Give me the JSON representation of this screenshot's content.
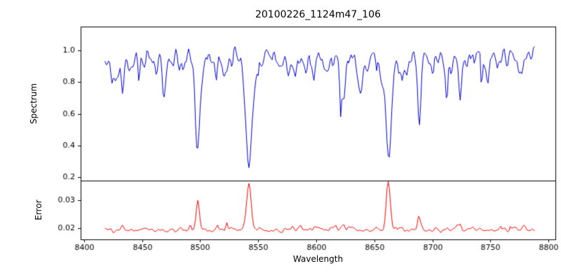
{
  "title": "20100226_1124m47_106",
  "axes": {
    "xlabel": "Wavelength",
    "ylabel_top": "Spectrum",
    "ylabel_bottom": "Error"
  },
  "colors": {
    "background": "#ffffff",
    "axis": "#000000",
    "spectrum_line": "#0000dd",
    "error_line": "#ff0000"
  },
  "chart_data": [
    {
      "type": "line",
      "title": "20100226_1124m47_106",
      "xlabel": "Wavelength",
      "ylabel": "Spectrum",
      "legend": "none",
      "grid": false,
      "line_color": "#0000dd",
      "xlim": [
        8397,
        8806
      ],
      "ylim": [
        0.18,
        1.15
      ],
      "x_ticks": {
        "values": [
          8400,
          8450,
          8500,
          8550,
          8600,
          8650,
          8700,
          8750,
          8800
        ],
        "labels": [
          "8400",
          "8450",
          "8500",
          "8550",
          "8600",
          "8650",
          "8700",
          "8750",
          "8800"
        ]
      },
      "y_ticks": {
        "values": [
          1.0,
          0.8,
          0.6,
          0.4,
          0.2
        ],
        "labels": [
          "1.0",
          "0.8",
          "0.6",
          "0.4",
          "0.2"
        ]
      },
      "x_start": 8418,
      "x_end": 8788,
      "x_step": 1,
      "baseline": 0.955,
      "noise_amplitude": 0.05,
      "clip_max": 1.06,
      "seed": 20100226,
      "micro_lines": {
        "count": 55,
        "seed": 7,
        "amp_min": 0.02,
        "amp_max": 0.13,
        "sigma_min": 0.5,
        "sigma_max": 1.8
      },
      "absorption_lines": [
        {
          "center": 8424.0,
          "depth": 0.1,
          "sigma": 0.9
        },
        {
          "center": 8433.0,
          "depth": 0.25,
          "sigma": 1.1
        },
        {
          "center": 8447.0,
          "depth": 0.1,
          "sigma": 0.8
        },
        {
          "center": 8468.0,
          "depth": 0.13,
          "sigma": 0.9
        },
        {
          "center": 8498.0,
          "depth": 0.53,
          "sigma": 1.9
        },
        {
          "center": 8514.0,
          "depth": 0.12,
          "sigma": 0.9
        },
        {
          "center": 8542.1,
          "depth": 0.72,
          "sigma": 2.7
        },
        {
          "center": 8582.0,
          "depth": 0.1,
          "sigma": 0.9
        },
        {
          "center": 8598.0,
          "depth": 0.12,
          "sigma": 0.9
        },
        {
          "center": 8621.0,
          "depth": 0.08,
          "sigma": 0.8
        },
        {
          "center": 8662.1,
          "depth": 0.67,
          "sigma": 2.4
        },
        {
          "center": 8674.0,
          "depth": 0.12,
          "sigma": 0.9
        },
        {
          "center": 8688.6,
          "depth": 0.27,
          "sigma": 1.3
        },
        {
          "center": 8713.0,
          "depth": 0.08,
          "sigma": 0.8
        },
        {
          "center": 8736.0,
          "depth": 0.08,
          "sigma": 0.8
        }
      ]
    },
    {
      "type": "line",
      "ylabel": "Error",
      "legend": "none",
      "grid": false,
      "line_color": "#ff0000",
      "xlim": [
        8397,
        8806
      ],
      "ylim": [
        0.016,
        0.037
      ],
      "y_ticks": {
        "values": [
          0.03,
          0.02
        ],
        "labels": [
          "0.03",
          "0.02"
        ]
      },
      "x_start": 8418,
      "x_end": 8788,
      "x_step": 1,
      "baseline": 0.0193,
      "noise_amplitude": 0.0006,
      "seed": 1124047,
      "micro_lines": {
        "count": 45,
        "seed": 9,
        "amp_min": 0.0002,
        "amp_max": 0.0015,
        "sigma_min": 0.5,
        "sigma_max": 1.5
      },
      "peaks": [
        {
          "center": 8433.0,
          "amp": 0.0013,
          "sigma": 1.0
        },
        {
          "center": 8498.0,
          "amp": 0.0095,
          "sigma": 1.5
        },
        {
          "center": 8514.0,
          "amp": 0.0008,
          "sigma": 0.9
        },
        {
          "center": 8542.1,
          "amp": 0.0168,
          "sigma": 1.9
        },
        {
          "center": 8662.1,
          "amp": 0.0172,
          "sigma": 1.7
        },
        {
          "center": 8688.6,
          "amp": 0.0038,
          "sigma": 1.1
        }
      ]
    }
  ]
}
